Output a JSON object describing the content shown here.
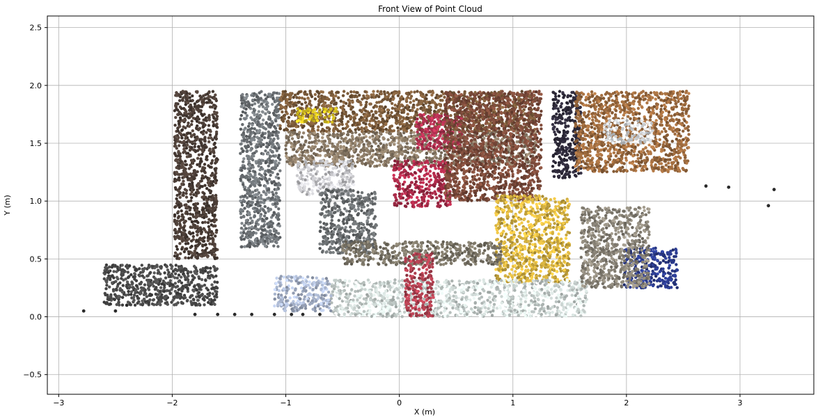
{
  "chart_data": {
    "type": "scatter",
    "title": "Front View of Point Cloud",
    "xlabel": "X (m)",
    "ylabel": "Y (m)",
    "xlim": [
      -3.1,
      3.65
    ],
    "ylim": [
      -0.67,
      2.6
    ],
    "xticks": [
      -3,
      -2,
      -1,
      0,
      1,
      2,
      3
    ],
    "xtick_labels": [
      "−3",
      "−2",
      "−1",
      "0",
      "1",
      "2",
      "3"
    ],
    "yticks": [
      -0.5,
      0.0,
      0.5,
      1.0,
      1.5,
      2.0,
      2.5
    ],
    "ytick_labels": [
      "−0.5",
      "0.0",
      "0.5",
      "1.0",
      "1.5",
      "2.0",
      "2.5"
    ],
    "grid": true,
    "regions": [
      {
        "name": "left-wall-dark",
        "x": [
          -1.98,
          -1.6
        ],
        "y": [
          0.5,
          1.95
        ],
        "color": "#4a3d36"
      },
      {
        "name": "left-pillar-grey",
        "x": [
          -1.4,
          -1.05
        ],
        "y": [
          0.6,
          1.95
        ],
        "color": "#6f7478"
      },
      {
        "name": "shelf-upper",
        "x": [
          -1.05,
          1.2
        ],
        "y": [
          1.6,
          1.95
        ],
        "color": "#7a5a3a"
      },
      {
        "name": "shelf-middle",
        "x": [
          -1.0,
          1.2
        ],
        "y": [
          1.3,
          1.6
        ],
        "color": "#8a7a66"
      },
      {
        "name": "yellow-bin",
        "x": [
          -0.9,
          -0.55
        ],
        "y": [
          1.68,
          1.8
        ],
        "color": "#d8c020"
      },
      {
        "name": "white-clutter",
        "x": [
          -0.9,
          -0.4
        ],
        "y": [
          1.05,
          1.35
        ],
        "color": "#c8c8cc"
      },
      {
        "name": "grey-stand",
        "x": [
          -0.7,
          -0.2
        ],
        "y": [
          0.55,
          1.1
        ],
        "color": "#6a6e70"
      },
      {
        "name": "flowers-upper",
        "x": [
          0.15,
          0.55
        ],
        "y": [
          1.45,
          1.75
        ],
        "color": "#b03050"
      },
      {
        "name": "flowers-lower",
        "x": [
          -0.05,
          0.45
        ],
        "y": [
          0.95,
          1.35
        ],
        "color": "#a82a48"
      },
      {
        "name": "right-shelving",
        "x": [
          0.4,
          1.25
        ],
        "y": [
          1.0,
          1.95
        ],
        "color": "#7b4a3a"
      },
      {
        "name": "yellow-frame",
        "x": [
          0.85,
          1.5
        ],
        "y": [
          0.3,
          1.05
        ],
        "color": "#d4b040"
      },
      {
        "name": "dark-door",
        "x": [
          1.35,
          1.6
        ],
        "y": [
          1.2,
          1.95
        ],
        "color": "#2e2a3a"
      },
      {
        "name": "wood-wall-right",
        "x": [
          1.55,
          2.55
        ],
        "y": [
          1.25,
          1.95
        ],
        "color": "#9c6a3e"
      },
      {
        "name": "papers",
        "x": [
          1.8,
          2.25
        ],
        "y": [
          1.5,
          1.7
        ],
        "color": "#d8dce0"
      },
      {
        "name": "blue-machine",
        "x": [
          1.98,
          2.45
        ],
        "y": [
          0.25,
          0.6
        ],
        "color": "#2a3a8a"
      },
      {
        "name": "floor-mid",
        "x": [
          -0.5,
          0.9
        ],
        "y": [
          0.45,
          0.65
        ],
        "color": "#7a7466"
      },
      {
        "name": "white-cylinder",
        "x": [
          -0.6,
          1.65
        ],
        "y": [
          0.0,
          0.32
        ],
        "color": "#cfd9d6"
      },
      {
        "name": "red-box",
        "x": [
          0.05,
          0.3
        ],
        "y": [
          0.0,
          0.55
        ],
        "color": "#b04050"
      },
      {
        "name": "bluish-floor",
        "x": [
          -1.1,
          -0.6
        ],
        "y": [
          0.05,
          0.35
        ],
        "color": "#a8b4cc"
      },
      {
        "name": "floor-left-scatter",
        "x": [
          -2.6,
          -1.6
        ],
        "y": [
          0.1,
          0.45
        ],
        "color": "#4a4a4a"
      },
      {
        "name": "floor-right",
        "x": [
          1.6,
          2.2
        ],
        "y": [
          0.25,
          0.95
        ],
        "color": "#8a8478"
      }
    ],
    "sparse_points": [
      {
        "x": -2.78,
        "y": 0.05
      },
      {
        "x": -2.5,
        "y": 0.05
      },
      {
        "x": -2.4,
        "y": 0.1
      },
      {
        "x": -1.8,
        "y": 0.02
      },
      {
        "x": -1.6,
        "y": 0.02
      },
      {
        "x": -1.45,
        "y": 0.02
      },
      {
        "x": -1.3,
        "y": 0.02
      },
      {
        "x": -1.1,
        "y": 0.02
      },
      {
        "x": -0.95,
        "y": 0.02
      },
      {
        "x": -0.85,
        "y": 0.02
      },
      {
        "x": -0.7,
        "y": 0.02
      },
      {
        "x": 3.3,
        "y": 1.1
      },
      {
        "x": 3.25,
        "y": 0.96
      },
      {
        "x": 2.9,
        "y": 1.12
      },
      {
        "x": 2.7,
        "y": 1.13
      }
    ]
  },
  "colors": {
    "grid": "#b0b0b0",
    "axes": "#000000"
  }
}
